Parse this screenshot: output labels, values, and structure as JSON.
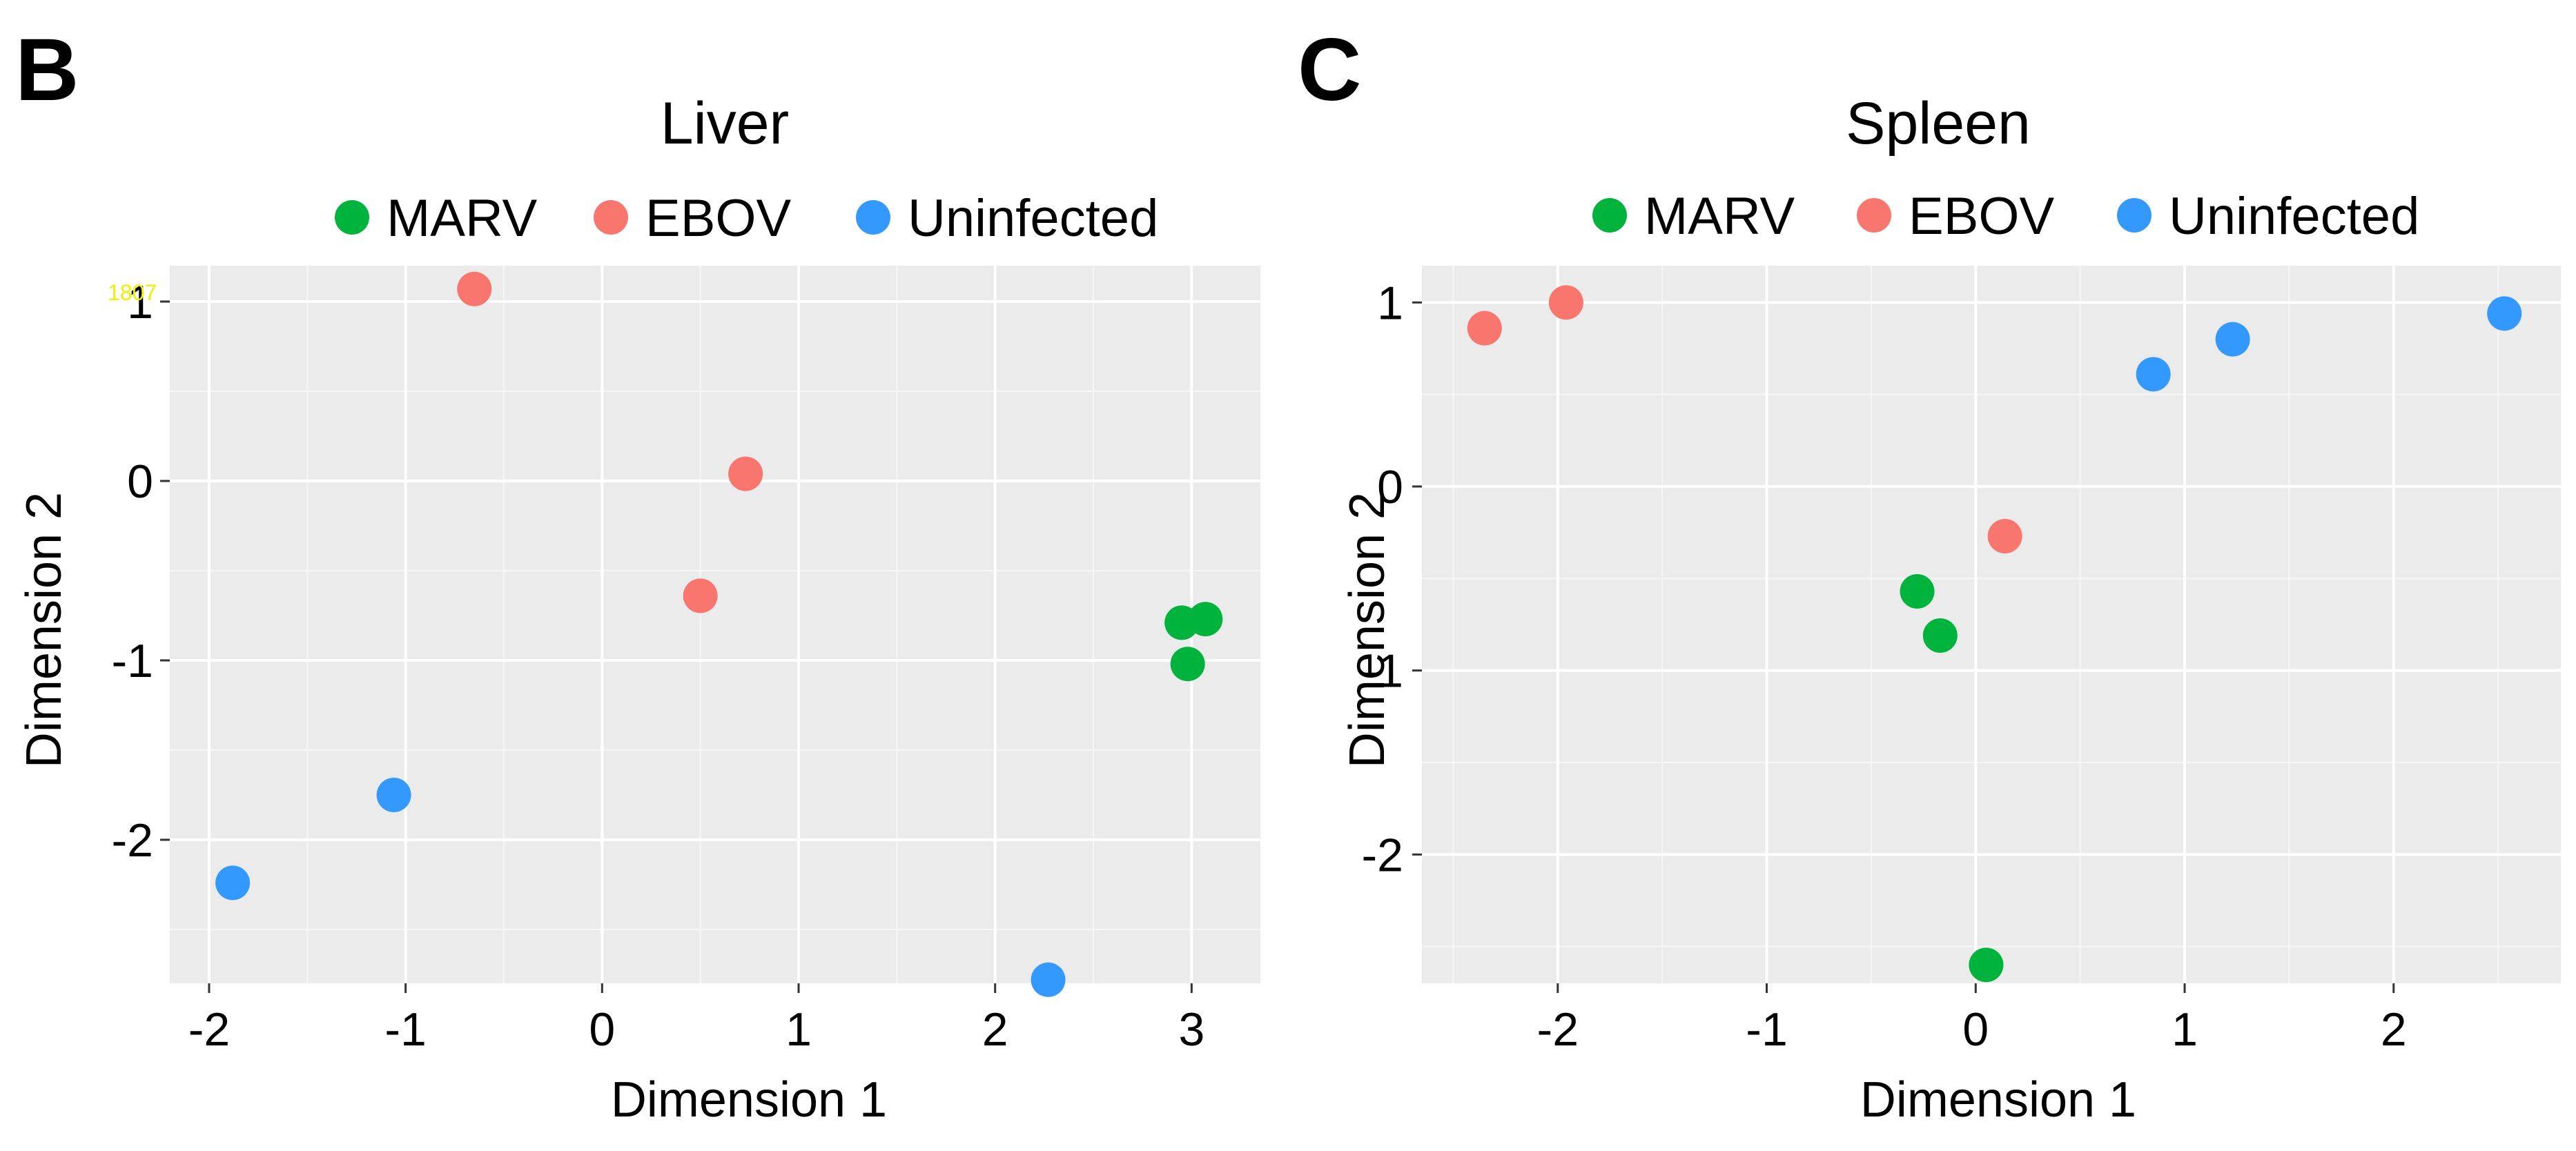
{
  "chart_data": [
    {
      "type": "scatter",
      "panel_label": "B",
      "title": "Liver",
      "xlabel": "Dimension 1",
      "ylabel": "Dimension 2",
      "xlim": [
        -2.2,
        3.35
      ],
      "ylim": [
        -2.8,
        1.2
      ],
      "xticks": [
        -2,
        -1,
        0,
        1,
        2,
        3
      ],
      "yticks": [
        -2,
        -1,
        0,
        1
      ],
      "grid": true,
      "legend_position": "top",
      "stray_label": "1807",
      "series": [
        {
          "name": "MARV",
          "color": "#00b33c",
          "points": [
            [
              2.95,
              -0.79
            ],
            [
              3.07,
              -0.77
            ],
            [
              2.98,
              -1.02
            ]
          ]
        },
        {
          "name": "EBOV",
          "color": "#f8766d",
          "points": [
            [
              -0.65,
              1.07
            ],
            [
              0.73,
              0.04
            ],
            [
              0.5,
              -0.64
            ]
          ]
        },
        {
          "name": "Uninfected",
          "color": "#3399ff",
          "points": [
            [
              -1.06,
              -1.75
            ],
            [
              -1.88,
              -2.24
            ],
            [
              2.27,
              -2.78
            ]
          ]
        }
      ]
    },
    {
      "type": "scatter",
      "panel_label": "C",
      "title": "Spleen",
      "xlabel": "Dimension 1",
      "ylabel": "Dimension 2",
      "xlim": [
        -2.65,
        2.8
      ],
      "ylim": [
        -2.7,
        1.2
      ],
      "xticks": [
        -2,
        -1,
        0,
        1,
        2
      ],
      "yticks": [
        -2,
        -1,
        0,
        1
      ],
      "grid": true,
      "legend_position": "top",
      "series": [
        {
          "name": "MARV",
          "color": "#00b33c",
          "points": [
            [
              -0.28,
              -0.57
            ],
            [
              -0.17,
              -0.81
            ],
            [
              0.05,
              -2.6
            ]
          ]
        },
        {
          "name": "EBOV",
          "color": "#f8766d",
          "points": [
            [
              -2.35,
              0.86
            ],
            [
              -1.96,
              1.0
            ],
            [
              0.14,
              -0.27
            ]
          ]
        },
        {
          "name": "Uninfected",
          "color": "#3399ff",
          "points": [
            [
              0.85,
              0.61
            ],
            [
              1.23,
              0.8
            ],
            [
              2.53,
              0.94
            ]
          ]
        }
      ]
    }
  ]
}
